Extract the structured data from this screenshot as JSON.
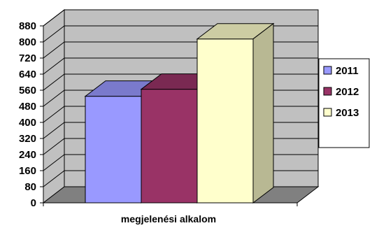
{
  "chart_data": {
    "type": "bar",
    "style": "3d-clustered-column",
    "xlabel": "megjelenési alkalom",
    "ylabel": "",
    "ylim": [
      0,
      880
    ],
    "y_ticks": [
      0,
      80,
      160,
      240,
      320,
      400,
      480,
      560,
      640,
      720,
      800,
      880
    ],
    "grid": true,
    "legend_position": "right",
    "series": [
      {
        "name": "2011",
        "values": [
          530
        ],
        "color": "#9999ff"
      },
      {
        "name": "2012",
        "values": [
          565
        ],
        "color": "#993366"
      },
      {
        "name": "2013",
        "values": [
          815
        ],
        "color": "#ffffcc"
      }
    ]
  }
}
